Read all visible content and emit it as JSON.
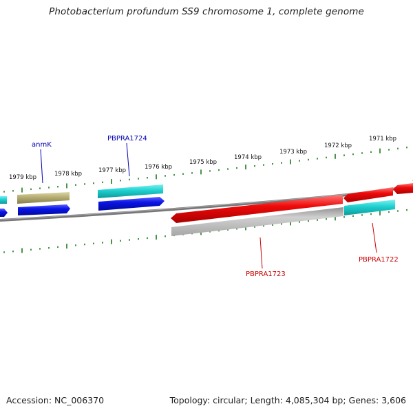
{
  "title": "Photobacterium profundum SS9 chromosome 1, complete genome",
  "footer": {
    "accession": "Accession: NC_006370",
    "summary": "Topology: circular; Length: 4,085,304 bp; Genes: 3,606"
  },
  "kbp_labels": [
    "1979 kbp",
    "1978 kbp",
    "1977 kbp",
    "1976 kbp",
    "1975 kbp",
    "1974 kbp",
    "1973 kbp",
    "1972 kbp",
    "1971 kbp"
  ],
  "gene_labels": {
    "anmk": "anmK",
    "pbpra1724": "PBPRA1724",
    "pbpra1723": "PBPRA1723",
    "pbpra1722": "PBPRA1722"
  },
  "colors": {
    "forward_label": "#0000b0",
    "reverse_label": "#cc0000",
    "tick": "#1a7a1a",
    "backbone": "#777777",
    "blue_gene": "#0a14e6",
    "cyan_gene": "#1ecfcf",
    "olive_gene": "#b5ad72",
    "red_gene": "#ee0a0a",
    "gray_gene": "#b8b8b8"
  }
}
